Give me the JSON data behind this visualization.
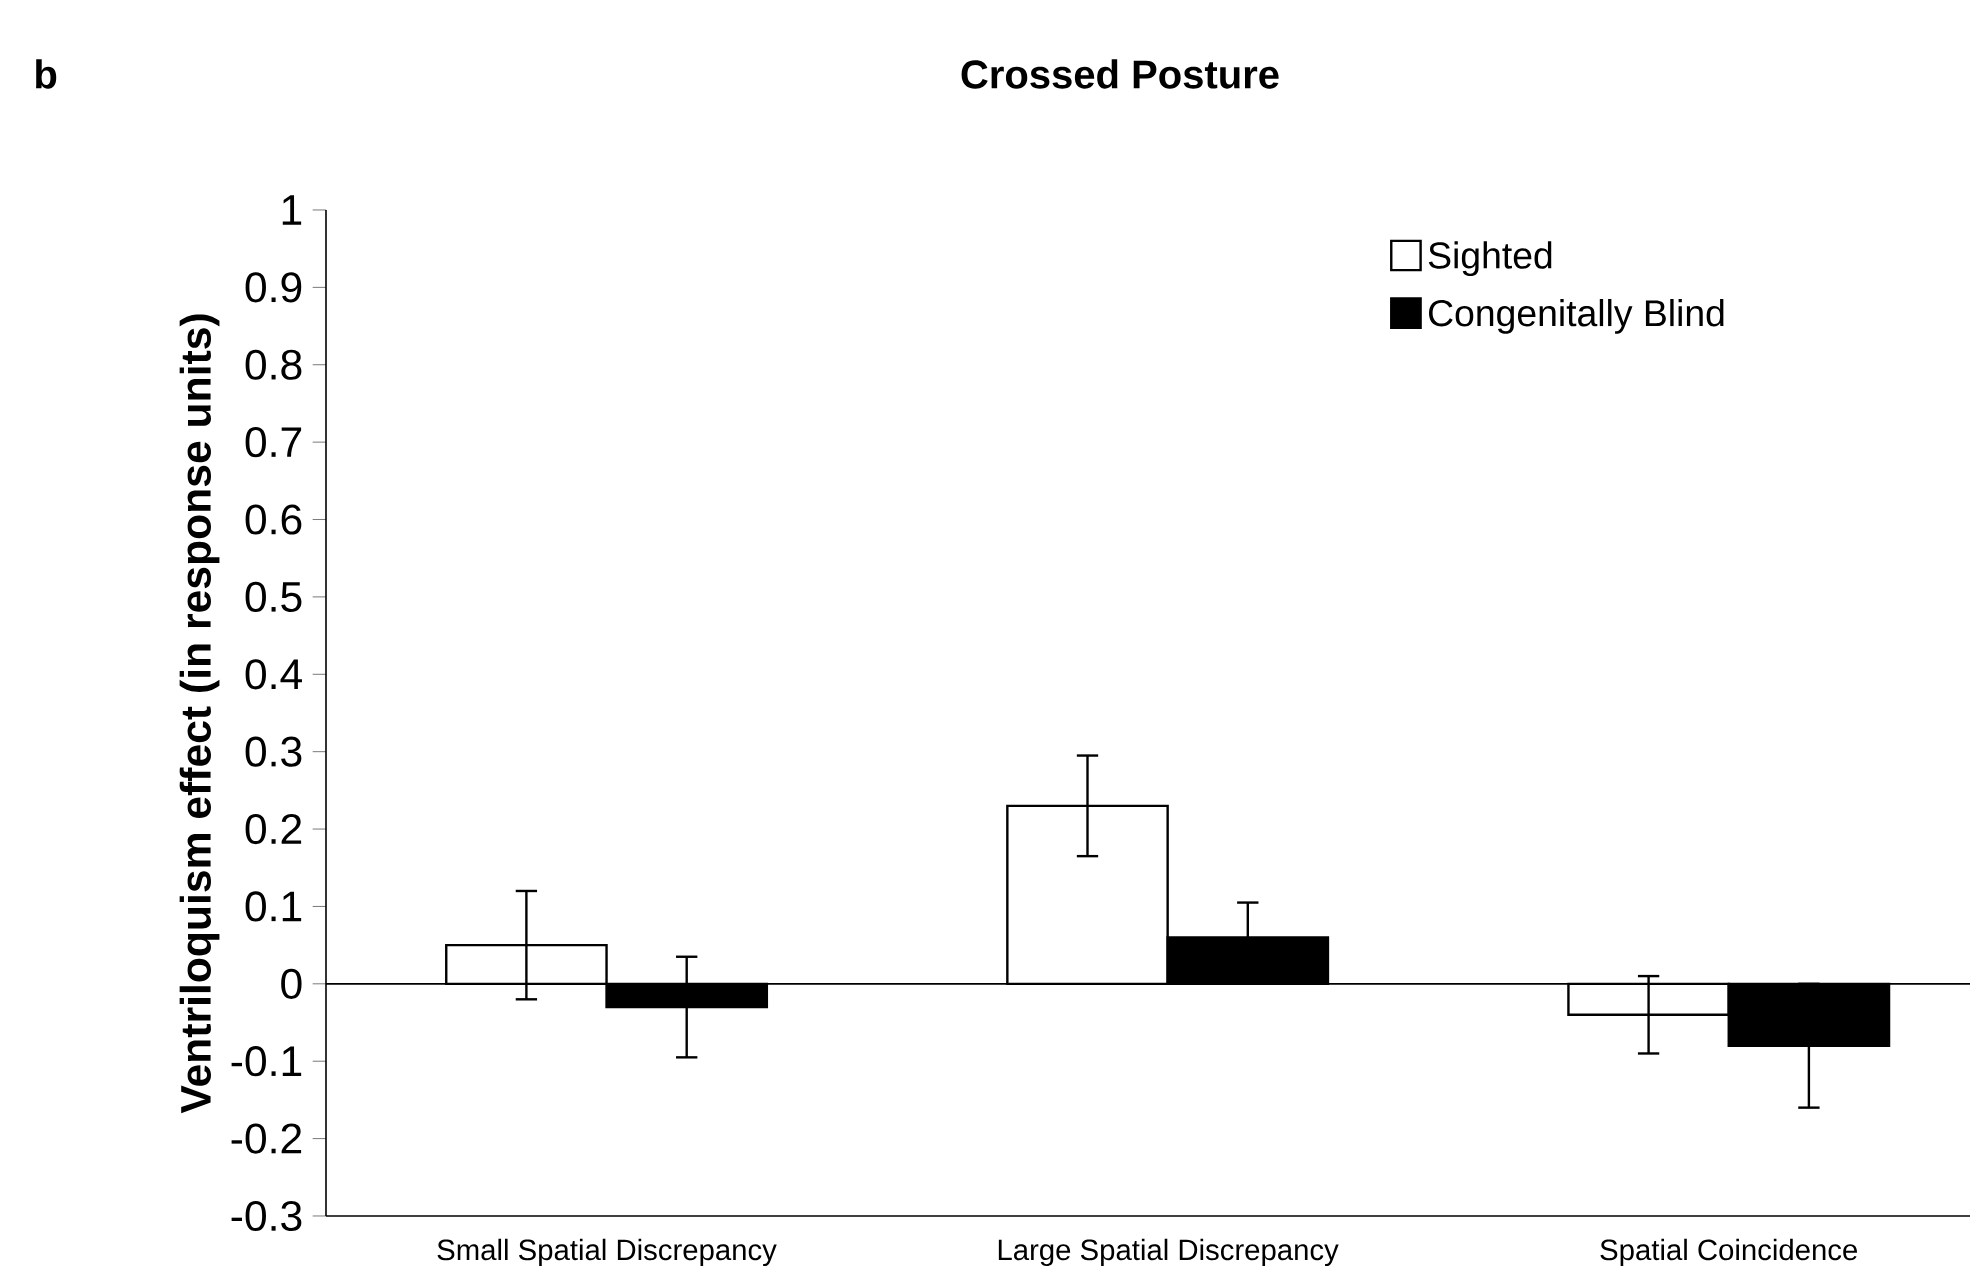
{
  "chart_data": {
    "type": "bar",
    "title": "Crossed Posture",
    "ylabel": "Ventriloquism effect (in response units)",
    "annotations": [
      "b"
    ],
    "categories": [
      "Small Spatial Discrepancy",
      "Large Spatial Discrepancy",
      "Spatial Coincidence"
    ],
    "series": [
      {
        "name": "Sighted",
        "color": "#ffffff",
        "values": [
          0.05,
          0.23,
          -0.04
        ],
        "errors": [
          0.07,
          0.065,
          0.05
        ]
      },
      {
        "name": "Congenitally Blind",
        "color": "#000000",
        "values": [
          -0.03,
          0.06,
          -0.08
        ],
        "errors": [
          0.065,
          0.045,
          0.08
        ]
      }
    ],
    "ylim": [
      -0.3,
      1
    ],
    "yticks": [
      -0.3,
      -0.2,
      -0.1,
      0,
      0.1,
      0.2,
      0.3,
      0.4,
      0.5,
      0.6,
      0.7,
      0.8,
      0.9,
      1
    ],
    "legend": "top right"
  }
}
